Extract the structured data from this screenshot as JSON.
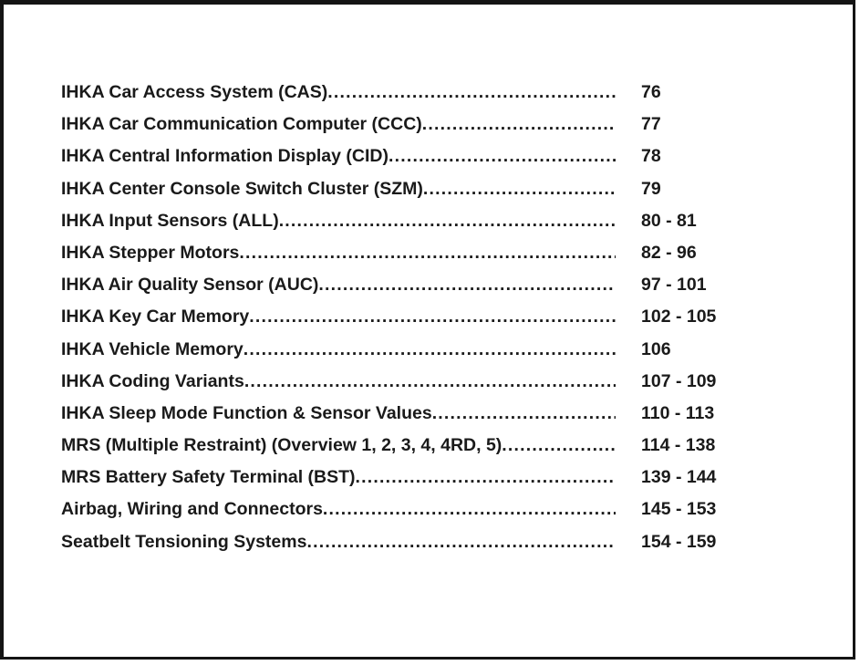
{
  "page": {
    "background": "#ffffff",
    "border_color": "#141414",
    "text_color": "#1a1a1a"
  },
  "toc": {
    "leader": "........................................................................................................................................",
    "entries": [
      {
        "title": "IHKA Car Access System (CAS)",
        "pages": "76"
      },
      {
        "title": "IHKA Car Communication Computer (CCC)",
        "pages": "77"
      },
      {
        "title": "IHKA Central Information Display (CID)",
        "pages": "78"
      },
      {
        "title": "IHKA Center Console Switch Cluster (SZM)",
        "pages": "79"
      },
      {
        "title": "IHKA Input Sensors (ALL)",
        "pages": "80 - 81"
      },
      {
        "title": "IHKA Stepper Motors",
        "pages": "82 - 96"
      },
      {
        "title": "IHKA Air Quality Sensor (AUC)",
        "pages": "97 - 101"
      },
      {
        "title": "IHKA Key Car Memory",
        "pages": "102 - 105"
      },
      {
        "title": "IHKA Vehicle Memory",
        "pages": "106"
      },
      {
        "title": "IHKA Coding Variants",
        "pages": "107 - 109"
      },
      {
        "title": "IHKA Sleep Mode Function & Sensor Values",
        "pages": "110 - 113"
      },
      {
        "title": "MRS (Multiple Restraint) (Overview 1, 2, 3, 4, 4RD, 5)",
        "pages": "114 - 138"
      },
      {
        "title": "MRS Battery Safety Terminal (BST)",
        "pages": "139 - 144"
      },
      {
        "title": "Airbag, Wiring and Connectors",
        "pages": "145 - 153"
      },
      {
        "title": "Seatbelt Tensioning Systems",
        "pages": "154 - 159"
      }
    ]
  }
}
